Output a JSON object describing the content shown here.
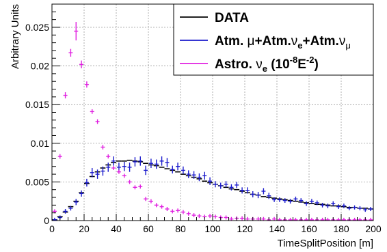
{
  "chart_data": {
    "type": "scatter",
    "xlabel": "TimeSplitPosition [m]",
    "ylabel": "Arbitrary Units",
    "xlim": [
      0,
      200
    ],
    "ylim": [
      0,
      0.028
    ],
    "x_ticks": [
      "0",
      "20",
      "40",
      "60",
      "80",
      "100",
      "120",
      "140",
      "160",
      "180",
      "200"
    ],
    "y_ticks": [
      "0",
      "0.005",
      "0.01",
      "0.015",
      "0.02",
      "0.025"
    ],
    "y_tick_values": [
      0,
      0.005,
      0.01,
      0.015,
      0.02,
      0.025
    ],
    "grid": true,
    "legend_position": "top-right",
    "legend": {
      "data_label": "DATA",
      "atm_label_parts": [
        "Atm. ",
        "μ",
        "+Atm.",
        "ν",
        "e",
        "+Atm.",
        "ν",
        "μ"
      ],
      "astro_label_parts": [
        "Astro. ",
        "ν",
        "e",
        " (10",
        "-8",
        "E",
        "-2",
        ")"
      ]
    },
    "series": [
      {
        "name": "DATA",
        "color": "#000000",
        "style": "step",
        "bin_width": 3.333,
        "x": [
          1.67,
          5,
          8.33,
          11.67,
          15,
          18.33,
          21.67,
          25,
          28.33,
          31.67,
          35,
          38.33,
          41.67,
          45,
          48.33,
          51.67,
          55,
          58.33,
          61.67,
          65,
          68.33,
          71.67,
          75,
          78.33,
          81.67,
          85,
          88.33,
          91.67,
          95,
          98.33,
          101.67,
          105,
          108.33,
          111.67,
          115,
          118.33,
          121.67,
          125,
          128.33,
          131.67,
          135,
          138.33,
          141.67,
          145,
          148.33,
          151.67,
          155,
          158.33,
          161.67,
          165,
          168.33,
          171.67,
          175,
          178.33,
          181.67,
          185,
          188.33,
          191.67,
          195,
          198.33
        ],
        "y": [
          0.0001,
          0.0005,
          0.0011,
          0.0018,
          0.0025,
          0.0036,
          0.0048,
          0.0057,
          0.0063,
          0.0068,
          0.0072,
          0.0075,
          0.0077,
          0.0077,
          0.0078,
          0.0077,
          0.0076,
          0.0074,
          0.0072,
          0.0071,
          0.0069,
          0.0067,
          0.0065,
          0.0063,
          0.006,
          0.0058,
          0.0056,
          0.0054,
          0.0051,
          0.0049,
          0.0047,
          0.0045,
          0.0043,
          0.0041,
          0.004,
          0.0038,
          0.0036,
          0.0034,
          0.0033,
          0.0031,
          0.003,
          0.0029,
          0.0028,
          0.0027,
          0.0026,
          0.0025,
          0.0024,
          0.0023,
          0.0022,
          0.0021,
          0.0021,
          0.002,
          0.0019,
          0.0019,
          0.0018,
          0.0017,
          0.0017,
          0.0016,
          0.0016,
          0.0015
        ]
      },
      {
        "name": "Atm. μ+Atm.νe+Atm.νμ",
        "color": "#1a1acc",
        "style": "errorbar",
        "x": [
          1.67,
          5,
          8.33,
          11.67,
          15,
          18.33,
          21.67,
          25,
          28.33,
          31.67,
          35,
          38.33,
          41.67,
          45,
          48.33,
          51.67,
          55,
          58.33,
          61.67,
          65,
          68.33,
          71.67,
          75,
          78.33,
          81.67,
          85,
          88.33,
          91.67,
          95,
          98.33,
          101.67,
          105,
          108.33,
          111.67,
          115,
          118.33,
          121.67,
          125,
          128.33,
          131.67,
          135,
          138.33,
          141.67,
          145,
          148.33,
          151.67,
          155,
          158.33,
          161.67,
          165,
          168.33,
          171.67,
          175,
          178.33,
          181.67,
          185,
          188.33,
          191.67,
          195,
          198.33
        ],
        "y": [
          0.0001,
          0.0004,
          0.0012,
          0.0016,
          0.0024,
          0.0035,
          0.0049,
          0.0062,
          0.006,
          0.0064,
          0.0069,
          0.0077,
          0.0069,
          0.007,
          0.0069,
          0.0076,
          0.0077,
          0.0065,
          0.0074,
          0.0073,
          0.0077,
          0.0075,
          0.0066,
          0.007,
          0.0065,
          0.006,
          0.0059,
          0.0056,
          0.0058,
          0.0051,
          0.0047,
          0.0045,
          0.0047,
          0.0043,
          0.0046,
          0.0039,
          0.0039,
          0.0034,
          0.0033,
          0.0038,
          0.0032,
          0.0027,
          0.0027,
          0.0026,
          0.0025,
          0.0028,
          0.0026,
          0.0022,
          0.0025,
          0.0023,
          0.002,
          0.0019,
          0.0022,
          0.0018,
          0.0019,
          0.0016,
          0.0017,
          0.0016,
          0.0014,
          0.0015
        ],
        "yerr": [
          0.0001,
          0.0002,
          0.0003,
          0.0003,
          0.0004,
          0.0004,
          0.0005,
          0.0006,
          0.0006,
          0.0006,
          0.0006,
          0.0006,
          0.0006,
          0.0006,
          0.0006,
          0.0006,
          0.0006,
          0.0006,
          0.0006,
          0.0006,
          0.0006,
          0.0006,
          0.0005,
          0.0005,
          0.0005,
          0.0005,
          0.0005,
          0.0005,
          0.0005,
          0.0005,
          0.0004,
          0.0004,
          0.0004,
          0.0004,
          0.0004,
          0.0004,
          0.0004,
          0.0004,
          0.0004,
          0.0004,
          0.0004,
          0.0003,
          0.0003,
          0.0003,
          0.0003,
          0.0003,
          0.0003,
          0.0003,
          0.0003,
          0.0003,
          0.0003,
          0.0003,
          0.0003,
          0.0003,
          0.0003,
          0.0002,
          0.0002,
          0.0002,
          0.0002,
          0.0002
        ]
      },
      {
        "name": "Astro. νe (10-8E-2)",
        "color": "#e020e0",
        "style": "errorbar",
        "x": [
          1.67,
          5,
          8.33,
          11.67,
          15,
          18.33,
          21.67,
          25,
          28.33,
          31.67,
          35,
          38.33,
          41.67,
          45,
          48.33,
          51.67,
          55,
          58.33,
          61.67,
          65,
          68.33,
          71.67,
          75,
          78.33,
          81.67,
          85,
          88.33,
          91.67,
          95,
          98.33,
          101.67,
          105,
          108.33,
          111.67,
          115,
          118.33,
          121.67,
          125,
          128.33,
          131.67,
          135,
          138.33,
          141.67,
          145,
          148.33,
          151.67,
          155,
          158.33,
          161.67,
          165,
          168.33,
          171.67,
          175,
          178.33,
          181.67,
          185,
          188.33,
          191.67,
          195,
          198.33
        ],
        "y": [
          0.0012,
          0.0083,
          0.0162,
          0.0217,
          0.0245,
          0.0202,
          0.0176,
          0.0141,
          0.0128,
          0.0095,
          0.0083,
          0.0068,
          0.0063,
          0.0058,
          0.005,
          0.0043,
          0.0044,
          0.0028,
          0.0025,
          0.002,
          0.0018,
          0.0015,
          0.0012,
          0.0013,
          0.0011,
          0.0009,
          0.0007,
          0.0006,
          0.0005,
          0.0006,
          0.0005,
          0.0004,
          0.0004,
          0.0002,
          0.0003,
          0.0003,
          0.0002,
          0.0002,
          0.0002,
          0.0002,
          0.0001,
          0.0002,
          0.0001,
          0.0001,
          0.0001,
          0.0001,
          0.0001,
          0.0001,
          0.0001,
          0.0001,
          0.0001,
          0.0001,
          0.0001,
          0.0001,
          0.0001,
          0.0001,
          0.0001,
          0.0001,
          0.0001,
          0.0001
        ],
        "yerr": [
          0.0001,
          0.0003,
          0.0004,
          0.0005,
          0.0012,
          0.0005,
          0.0004,
          0.0003,
          0.0003,
          0.0003,
          0.0002,
          0.0002,
          0.0002,
          0.0002,
          0.0002,
          0.0002,
          0.0002,
          0.0001,
          0.0001,
          0.0001,
          0.0001,
          0.0001,
          0.0001,
          0.0001,
          0.0001,
          0.0001,
          0.0001,
          0.0001,
          0.0001,
          0.0001,
          0.0001,
          0.0001,
          0.0001,
          0.0001,
          0.0001,
          0.0001,
          0.0001,
          0.0001,
          0.0001,
          0.0001,
          0.0001,
          0.0001,
          0.0001,
          0.0001,
          0.0001,
          0.0001,
          0.0001,
          0.0001,
          0.0001,
          0.0001,
          0.0001,
          0.0001,
          0.0001,
          0.0001,
          0.0001,
          0.0001,
          0.0001,
          0.0001,
          0.0001,
          0.0001
        ]
      }
    ]
  }
}
